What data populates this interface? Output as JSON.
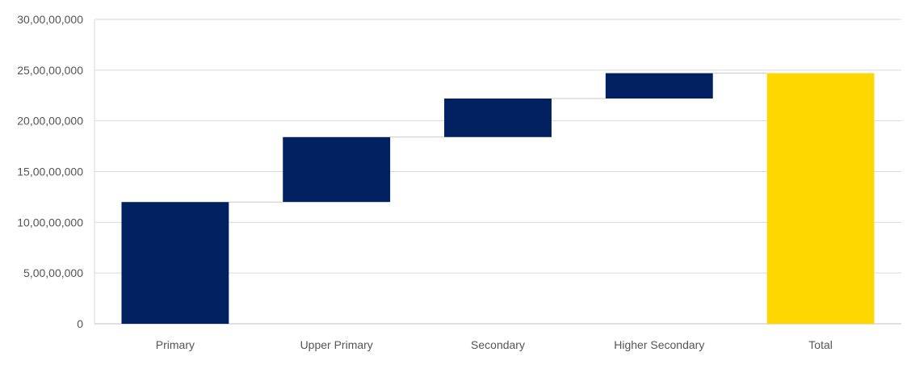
{
  "chart_data": {
    "type": "bar",
    "subtype": "waterfall",
    "categories": [
      "Primary",
      "Upper Primary",
      "Secondary",
      "Higher Secondary",
      "Total"
    ],
    "series": [
      {
        "values": [
          120000000,
          64000000,
          38000000,
          25000000,
          247000000
        ],
        "is_total": [
          false,
          false,
          false,
          false,
          true
        ]
      }
    ],
    "yticks": [
      "0",
      "5,00,00,000",
      "10,00,00,000",
      "15,00,00,000",
      "20,00,00,000",
      "25,00,00,000",
      "30,00,00,000"
    ],
    "ylim": [
      0,
      300000000
    ],
    "grid": true,
    "legend": "none",
    "colors": {
      "increase": "#002060",
      "total": "#FFD700",
      "grid": "#d9d9d9",
      "connector": "#c8c8c8",
      "text": "#555555"
    }
  }
}
